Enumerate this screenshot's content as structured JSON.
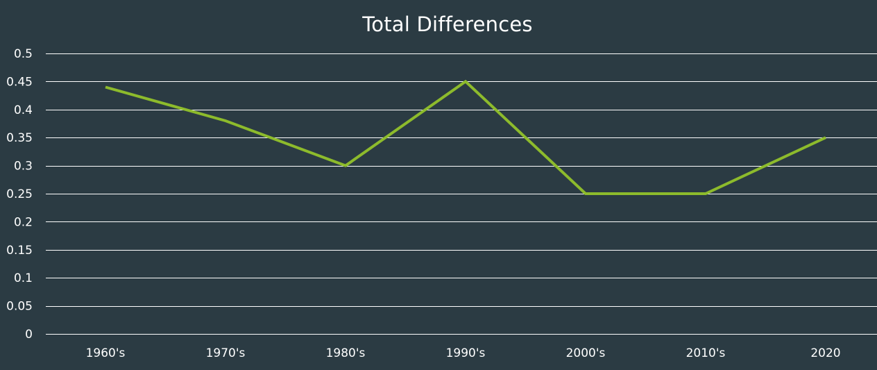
{
  "chart_data": {
    "type": "line",
    "title": "Total Differences",
    "xlabel": "",
    "ylabel": "",
    "categories": [
      "1960's",
      "1970's",
      "1980's",
      "1990's",
      "2000's",
      "2010's",
      "2020"
    ],
    "series": [
      {
        "values": [
          0.44,
          0.38,
          0.3,
          0.45,
          0.25,
          0.25,
          0.35
        ]
      }
    ],
    "ylim": [
      0,
      0.5
    ],
    "ytick_step": 0.05,
    "ytick_labels": [
      "0",
      "0.05",
      "0.1",
      "0.15",
      "0.2",
      "0.25",
      "0.3",
      "0.35",
      "0.4",
      "0.45",
      "0.5"
    ],
    "grid": true,
    "legend": "none",
    "colors": {
      "background": "#2b3b43",
      "line": "#8dbb2c",
      "grid": "#ffffff",
      "text": "#ffffff"
    }
  }
}
